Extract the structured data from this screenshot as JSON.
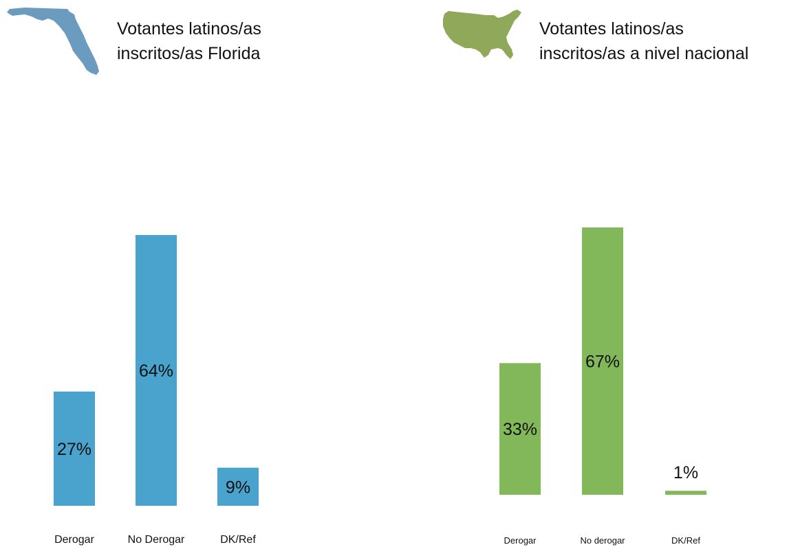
{
  "colors": {
    "florida_bar": "#4aa3cc",
    "national_bar": "#82b85a",
    "florida_map": "#6b9bbf",
    "us_map": "#8fa85a"
  },
  "icons": {
    "florida": "florida-map-icon",
    "us": "us-map-icon"
  },
  "chart_data": [
    {
      "type": "bar",
      "title_lines": [
        "Votantes latinos/as",
        "inscritos/as Florida"
      ],
      "categories": [
        "Derogar",
        "No Derogar",
        "DK/Ref"
      ],
      "values": [
        27,
        64,
        9
      ],
      "data_labels": [
        "27%",
        "64%",
        "9%"
      ],
      "unit": "%",
      "ylim": [
        0,
        64
      ],
      "grid": false,
      "legend": "none"
    },
    {
      "type": "bar",
      "title_lines": [
        "Votantes latinos/as",
        "inscritos/as a nivel nacional"
      ],
      "categories": [
        "Derogar",
        "No derogar",
        "DK/Ref"
      ],
      "values": [
        33,
        67,
        1
      ],
      "data_labels": [
        "33%",
        "67%",
        "1%"
      ],
      "unit": "%",
      "ylim": [
        0,
        67
      ],
      "grid": false,
      "legend": "none"
    }
  ]
}
